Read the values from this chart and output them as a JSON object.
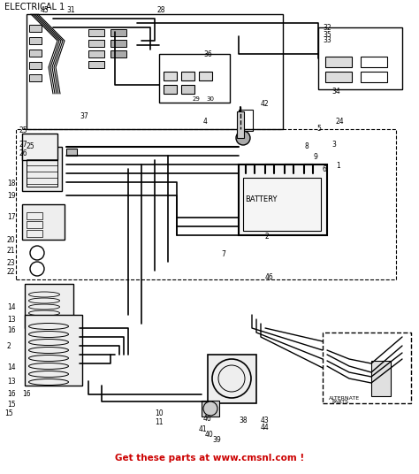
{
  "title": "ELECTRICAL 1",
  "footer_text": "Get these parts at www.cmsnl.com !",
  "footer_color": "#cc0000",
  "bg_color": "#ffffff",
  "line_color": "#000000",
  "fig_width": 4.74,
  "fig_height": 5.36,
  "dpi": 100
}
